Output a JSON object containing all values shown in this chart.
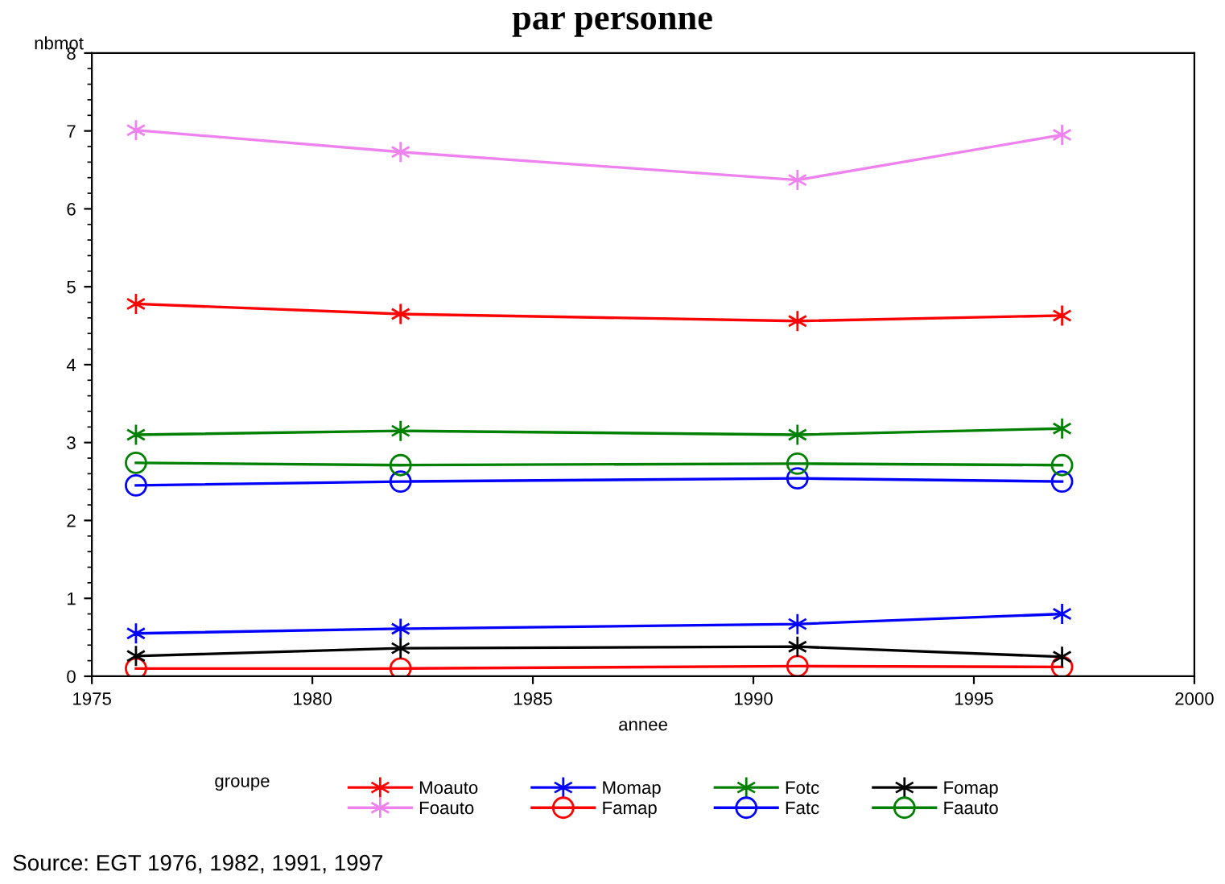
{
  "chart_data": {
    "type": "line",
    "title": "par personne",
    "xlabel": "annee",
    "ylabel": "nbmot",
    "legend_title": "groupe",
    "annotations": [
      "Source: EGT 1976, 1982, 1991, 1997"
    ],
    "x": [
      1976,
      1982,
      1991,
      1997
    ],
    "xlim": [
      1975,
      2000
    ],
    "xticks": [
      1975,
      1980,
      1985,
      1990,
      1995,
      2000
    ],
    "ylim": [
      0,
      8
    ],
    "yticks": [
      0,
      1,
      2,
      3,
      4,
      5,
      6,
      7,
      8
    ],
    "grid": false,
    "legend": "bottom",
    "series": [
      {
        "name": "Moauto",
        "color": "#ff0000",
        "marker": "cross",
        "values": [
          4.78,
          4.65,
          4.56,
          4.63
        ]
      },
      {
        "name": "Foauto",
        "color": "#ee82ee",
        "marker": "cross",
        "values": [
          7.01,
          6.73,
          6.37,
          6.95
        ]
      },
      {
        "name": "Momap",
        "color": "#0000ff",
        "marker": "cross",
        "values": [
          0.55,
          0.61,
          0.67,
          0.8
        ]
      },
      {
        "name": "Famap",
        "color": "#ff0000",
        "marker": "circle",
        "values": [
          0.1,
          0.1,
          0.13,
          0.12
        ]
      },
      {
        "name": "Fotc",
        "color": "#008000",
        "marker": "cross",
        "values": [
          3.1,
          3.15,
          3.1,
          3.18
        ]
      },
      {
        "name": "Fatc",
        "color": "#0000ff",
        "marker": "circle",
        "values": [
          2.45,
          2.5,
          2.54,
          2.5
        ]
      },
      {
        "name": "Fomap",
        "color": "#000000",
        "marker": "cross",
        "values": [
          0.26,
          0.36,
          0.38,
          0.25
        ]
      },
      {
        "name": "Faauto",
        "color": "#008000",
        "marker": "circle",
        "values": [
          2.74,
          2.71,
          2.73,
          2.71
        ]
      }
    ]
  }
}
